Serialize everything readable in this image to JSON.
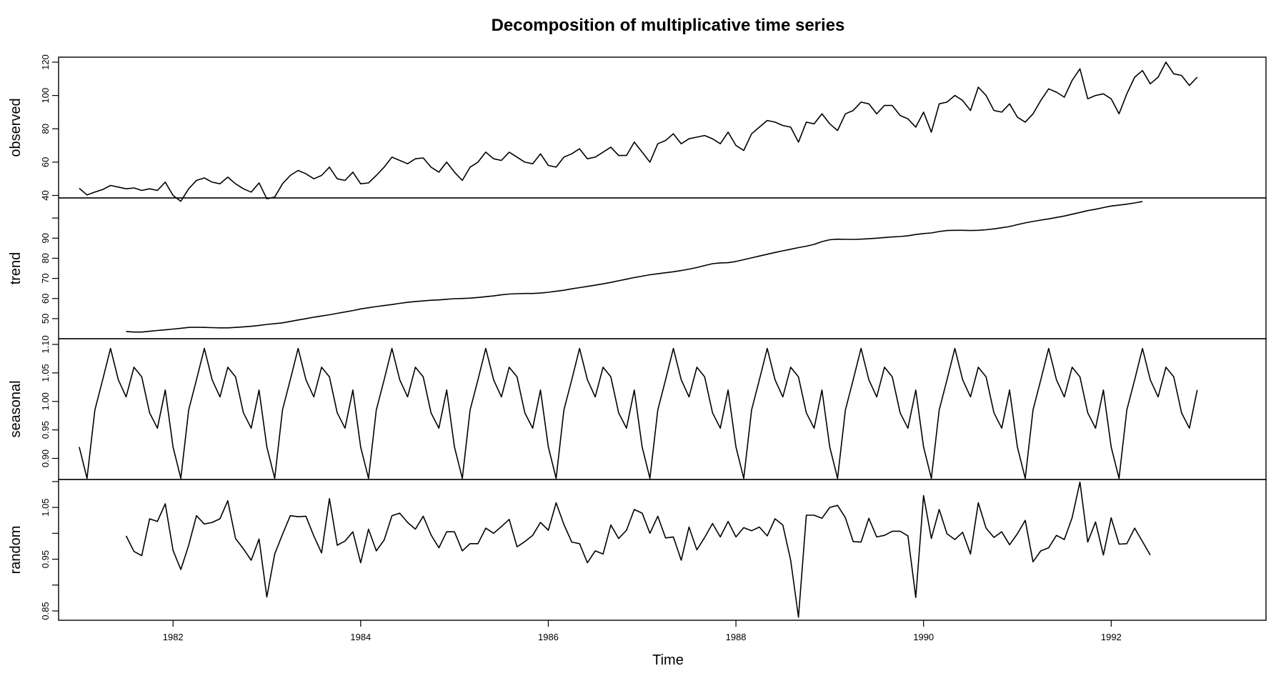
{
  "chart_data": {
    "type": "line",
    "title": "Decomposition of multiplicative time series",
    "xlabel": "Time",
    "x_start": 1981.0,
    "frequency": 12,
    "xlim": [
      1980.78,
      1993.65
    ],
    "x_ticks": [
      1982,
      1984,
      1986,
      1988,
      1990,
      1992
    ],
    "panels": [
      {
        "name": "observed",
        "ylabel": "observed",
        "ylim": [
          38.5,
          123
        ],
        "y_ticks": [
          40,
          60,
          80,
          100,
          120
        ],
        "y_tick_labels": [
          "40",
          "60",
          "80",
          "100",
          "120"
        ],
        "start_index": 0,
        "values": [
          44.3,
          40.3,
          42.0,
          43.5,
          46.0,
          45.0,
          44.0,
          44.5,
          43.0,
          44.0,
          43.0,
          48.0,
          40.0,
          36.5,
          44.0,
          49.0,
          50.5,
          48.0,
          47.0,
          51.0,
          47.0,
          44.0,
          42.0,
          47.5,
          38.0,
          39.0,
          47.0,
          52.0,
          55.0,
          53.0,
          50.0,
          52.0,
          57.0,
          50.0,
          49.0,
          54.0,
          47.0,
          47.5,
          52.0,
          57.0,
          63.0,
          61.0,
          59.0,
          62.0,
          62.5,
          57.0,
          54.0,
          60.0,
          54.0,
          49.0,
          57.0,
          60.0,
          66.0,
          62.0,
          61.0,
          66.0,
          63.0,
          60.0,
          59.0,
          65.0,
          58.0,
          57.0,
          63.0,
          65.0,
          68.0,
          62.0,
          63.0,
          66.0,
          69.0,
          64.0,
          64.0,
          72.0,
          66.0,
          60.0,
          71.0,
          73.0,
          77.0,
          71.0,
          74.0,
          75.0,
          76.0,
          74.0,
          71.0,
          78.0,
          70.0,
          67.0,
          77.0,
          81.0,
          85.0,
          84.0,
          82.0,
          81.0,
          72.0,
          84.0,
          83.0,
          89.0,
          83.0,
          79.0,
          89.0,
          91.0,
          96.0,
          95.0,
          89.0,
          94.0,
          94.0,
          88.0,
          86.0,
          81.0,
          90.0,
          78.0,
          95.0,
          96.0,
          100.0,
          97.0,
          91.0,
          105.0,
          100.0,
          91.0,
          90.0,
          95.0,
          87.0,
          84.0,
          89.0,
          97.0,
          104.0,
          102.0,
          99.0,
          109.0,
          116.0,
          98.0,
          100.0,
          101.0,
          98.0,
          89.0,
          101.0,
          111.0,
          115.0,
          107.0,
          111.0,
          120.0,
          113.0,
          112.0,
          106.0,
          111.0
        ]
      },
      {
        "name": "trend",
        "ylabel": "trend",
        "ylim": [
          40,
          110
        ],
        "y_ticks": [
          50,
          60,
          70,
          80,
          90,
          100
        ],
        "y_tick_labels": [
          "50",
          "60",
          "70",
          "80",
          "90",
          ""
        ],
        "start_index": 6,
        "values": [
          43.6,
          43.3,
          43.3,
          43.7,
          44.1,
          44.4,
          44.8,
          45.2,
          45.6,
          45.7,
          45.6,
          45.5,
          45.4,
          45.4,
          45.6,
          45.9,
          46.2,
          46.6,
          47.1,
          47.5,
          47.9,
          48.6,
          49.3,
          50.0,
          50.7,
          51.3,
          51.9,
          52.6,
          53.3,
          54.0,
          54.8,
          55.4,
          56.0,
          56.5,
          57.0,
          57.6,
          58.1,
          58.5,
          58.8,
          59.1,
          59.3,
          59.6,
          59.9,
          60.0,
          60.2,
          60.5,
          60.9,
          61.3,
          61.8,
          62.2,
          62.4,
          62.5,
          62.5,
          62.7,
          63.1,
          63.6,
          64.1,
          64.8,
          65.4,
          66.0,
          66.6,
          67.3,
          68.0,
          68.8,
          69.6,
          70.4,
          71.1,
          71.8,
          72.3,
          72.8,
          73.3,
          73.9,
          74.6,
          75.4,
          76.4,
          77.3,
          77.7,
          77.8,
          78.4,
          79.3,
          80.2,
          81.1,
          82.0,
          82.9,
          83.7,
          84.5,
          85.3,
          86.0,
          86.9,
          88.3,
          89.2,
          89.5,
          89.4,
          89.4,
          89.5,
          89.7,
          90.0,
          90.3,
          90.6,
          90.8,
          91.2,
          91.8,
          92.3,
          92.6,
          93.3,
          93.8,
          93.9,
          93.9,
          93.8,
          93.9,
          94.2,
          94.6,
          95.2,
          95.8,
          96.7,
          97.6,
          98.3,
          99.0,
          99.6,
          100.3,
          101.0,
          101.9,
          102.8,
          103.7,
          104.4,
          105.2,
          106.0,
          106.4,
          106.9,
          107.5,
          108.2
        ]
      },
      {
        "name": "seasonal",
        "ylabel": "seasonal",
        "ylim": [
          0.863,
          1.11
        ],
        "y_ticks": [
          0.9,
          0.95,
          1.0,
          1.05,
          1.1
        ],
        "y_tick_labels": [
          "0.90",
          "0.95",
          "1.00",
          "1.05",
          "1.10"
        ],
        "start_index": 0,
        "cycle": [
          0.92,
          0.865,
          0.985,
          1.038,
          1.093,
          1.038,
          1.008,
          1.06,
          1.043,
          0.98,
          0.953,
          1.02
        ],
        "cycles": 12
      },
      {
        "name": "random",
        "ylabel": "random",
        "ylim": [
          0.832,
          1.104
        ],
        "y_ticks": [
          0.85,
          0.9,
          0.95,
          1.0,
          1.05,
          1.1
        ],
        "y_tick_labels": [
          "0.85",
          "",
          "0.95",
          "",
          "1.05",
          ""
        ],
        "start_index": 6,
        "values": [
          0.995,
          0.965,
          0.957,
          1.028,
          1.023,
          1.057,
          0.967,
          0.93,
          0.977,
          1.034,
          1.018,
          1.021,
          1.028,
          1.063,
          0.99,
          0.97,
          0.948,
          0.989,
          0.877,
          0.96,
          0.998,
          1.034,
          1.032,
          1.033,
          0.995,
          0.962,
          1.067,
          0.977,
          0.985,
          1.003,
          0.943,
          1.008,
          0.966,
          0.987,
          1.034,
          1.039,
          1.021,
          1.008,
          1.033,
          0.997,
          0.972,
          1.003,
          1.003,
          0.966,
          0.98,
          0.98,
          1.01,
          1.0,
          1.013,
          1.027,
          0.974,
          0.984,
          0.996,
          1.021,
          1.006,
          1.059,
          1.017,
          0.983,
          0.98,
          0.943,
          0.966,
          0.96,
          1.016,
          0.99,
          1.006,
          1.046,
          1.039,
          1.0,
          1.033,
          0.991,
          0.993,
          0.948,
          1.012,
          0.968,
          0.992,
          1.019,
          0.993,
          1.023,
          0.993,
          1.011,
          1.005,
          1.012,
          0.995,
          1.028,
          1.016,
          0.948,
          0.838,
          1.035,
          1.035,
          1.029,
          1.05,
          1.054,
          1.03,
          0.984,
          0.983,
          1.029,
          0.993,
          0.996,
          1.004,
          1.004,
          0.995,
          0.876,
          1.073,
          0.99,
          1.046,
          0.999,
          0.988,
          1.002,
          0.96,
          1.059,
          1.01,
          0.992,
          1.003,
          0.978,
          0.999,
          1.025,
          0.945,
          0.966,
          0.972,
          0.996,
          0.988,
          1.03,
          1.099,
          0.983,
          1.022,
          0.958,
          1.03,
          0.979,
          0.98,
          1.01,
          0.984,
          0.958
        ]
      }
    ]
  }
}
